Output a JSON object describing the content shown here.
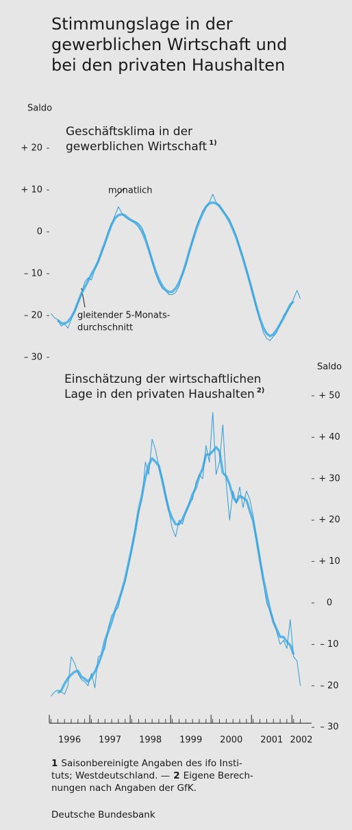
{
  "title": [
    "Stimmungslage in der",
    "gewerblichen Wirtschaft und",
    "bei den privaten Haushalten"
  ],
  "chart_data": [
    {
      "type": "line",
      "subtitle": [
        "Geschäftsklima in der",
        "gewerblichen Wirtschaft"
      ],
      "subtitle_note": "1)",
      "ylabel": "Saldo",
      "yaxis": "left",
      "annotations": [
        {
          "lines": [
            "monatlich"
          ]
        },
        {
          "lines": [
            "gleitender 5-Monats-",
            "durchschnitt"
          ]
        }
      ],
      "x": [
        "1996-01",
        "1996-02",
        "1996-03",
        "1996-04",
        "1996-05",
        "1996-06",
        "1996-07",
        "1996-08",
        "1996-09",
        "1996-10",
        "1996-11",
        "1996-12",
        "1997-01",
        "1997-02",
        "1997-03",
        "1997-04",
        "1997-05",
        "1997-06",
        "1997-07",
        "1997-08",
        "1997-09",
        "1997-10",
        "1997-11",
        "1997-12",
        "1998-01",
        "1998-02",
        "1998-03",
        "1998-04",
        "1998-05",
        "1998-06",
        "1998-07",
        "1998-08",
        "1998-09",
        "1998-10",
        "1998-11",
        "1998-12",
        "1999-01",
        "1999-02",
        "1999-03",
        "1999-04",
        "1999-05",
        "1999-06",
        "1999-07",
        "1999-08",
        "1999-09",
        "1999-10",
        "1999-11",
        "1999-12",
        "2000-01",
        "2000-02",
        "2000-03",
        "2000-04",
        "2000-05",
        "2000-06",
        "2000-07",
        "2000-08",
        "2000-09",
        "2000-10",
        "2000-11",
        "2000-12",
        "2001-01",
        "2001-02",
        "2001-03",
        "2001-04",
        "2001-05",
        "2001-06",
        "2001-07",
        "2001-08",
        "2001-09",
        "2001-10",
        "2001-11",
        "2001-12",
        "2002-01",
        "2002-02",
        "2002-03"
      ],
      "series": [
        {
          "color": "#2f9bd6",
          "width": 1,
          "values": [
            -19.5,
            -20.5,
            -21,
            -22.5,
            -22,
            -23,
            -21,
            -19,
            -17,
            -15,
            -12,
            -11,
            -11.5,
            -9,
            -7,
            -5,
            -3,
            0,
            2,
            4,
            6,
            4.5,
            3.5,
            3,
            2.5,
            2.5,
            2,
            1,
            -1,
            -4,
            -7,
            -10,
            -12,
            -13.5,
            -14,
            -15,
            -15,
            -14.5,
            -13,
            -10,
            -8,
            -5,
            -2,
            1,
            3,
            5,
            6,
            7,
            9,
            7,
            6,
            5,
            4,
            3,
            1,
            -1,
            -4,
            -6,
            -9,
            -12,
            -15,
            -18,
            -21,
            -24,
            -25.5,
            -26,
            -25,
            -24,
            -22,
            -20,
            -19,
            -18,
            -16,
            -14,
            -16
          ]
        },
        {
          "color": "#5ab4e6",
          "width": 3.5,
          "values": [
            null,
            null,
            -21.1,
            -21.8,
            -21.9,
            -21.5,
            -20.4,
            -19,
            -16.8,
            -14.8,
            -13.3,
            -11.7,
            -10.1,
            -8.7,
            -7.1,
            -4.8,
            -2.6,
            -0.4,
            1.8,
            3.3,
            4,
            4.2,
            3.9,
            3.2,
            2.7,
            2.2,
            1.4,
            0.1,
            -1.8,
            -4.2,
            -6.8,
            -9.3,
            -11.3,
            -12.9,
            -13.9,
            -14.4,
            -14.3,
            -13.5,
            -12.1,
            -10.1,
            -7.6,
            -4.8,
            -2.2,
            0.4,
            2.6,
            4.4,
            6,
            6.8,
            7,
            6.8,
            6.2,
            5,
            3.8,
            2.4,
            0.6,
            -1.4,
            -3.8,
            -6.4,
            -9.2,
            -12,
            -15,
            -18,
            -20.7,
            -22.9,
            -24.3,
            -24.9,
            -24.5,
            -23.4,
            -22,
            -20.6,
            -19,
            -17.4,
            -16.6,
            null,
            null
          ]
        }
      ],
      "ylim": [
        -30,
        30
      ],
      "yticks": [
        {
          "value": -30,
          "label": "– 30"
        },
        {
          "value": -20,
          "label": "– 20"
        },
        {
          "value": -10,
          "label": "– 10"
        },
        0,
        {
          "value": 10,
          "label": "+ 10"
        },
        {
          "value": 20,
          "label": "+ 20"
        }
      ]
    },
    {
      "type": "line",
      "subtitle": [
        "Einschätzung der wirtschaftlichen",
        "Lage in den privaten Haushalten"
      ],
      "subtitle_note": "2)",
      "ylabel": "Saldo",
      "yaxis": "right",
      "x": [
        "1996-01",
        "1996-02",
        "1996-03",
        "1996-04",
        "1996-05",
        "1996-06",
        "1996-07",
        "1996-08",
        "1996-09",
        "1996-10",
        "1996-11",
        "1996-12",
        "1997-01",
        "1997-02",
        "1997-03",
        "1997-04",
        "1997-05",
        "1997-06",
        "1997-07",
        "1997-08",
        "1997-09",
        "1997-10",
        "1997-11",
        "1997-12",
        "1998-01",
        "1998-02",
        "1998-03",
        "1998-04",
        "1998-05",
        "1998-06",
        "1998-07",
        "1998-08",
        "1998-09",
        "1998-10",
        "1998-11",
        "1998-12",
        "1999-01",
        "1999-02",
        "1999-03",
        "1999-04",
        "1999-05",
        "1999-06",
        "1999-07",
        "1999-08",
        "1999-09",
        "1999-10",
        "1999-11",
        "1999-12",
        "2000-01",
        "2000-02",
        "2000-03",
        "2000-04",
        "2000-05",
        "2000-06",
        "2000-07",
        "2000-08",
        "2000-09",
        "2000-10",
        "2000-11",
        "2000-12",
        "2001-01",
        "2001-02",
        "2001-03",
        "2001-04",
        "2001-05",
        "2001-06",
        "2001-07",
        "2001-08",
        "2001-09",
        "2001-10",
        "2001-11",
        "2001-12",
        "2002-01",
        "2002-02",
        "2002-03"
      ],
      "xticks": [
        "1996",
        "1997",
        "1998",
        "1999",
        "2000",
        "2001",
        "2002"
      ],
      "series": [
        {
          "color": "#2f9bd6",
          "width": 1,
          "values": [
            -22.5,
            -21.5,
            -21,
            -21.5,
            -22,
            -20,
            -13,
            -14.5,
            -17,
            -18.5,
            -19,
            -20,
            -17,
            -20.5,
            -13,
            -12.5,
            -11,
            -6,
            -3,
            -2,
            -1,
            3,
            5,
            9,
            13,
            18,
            22,
            25,
            34,
            31,
            39.5,
            37,
            33,
            30,
            26,
            22,
            18,
            16,
            20,
            19,
            22,
            24,
            25,
            29,
            31,
            30,
            38,
            34,
            46,
            31,
            34,
            43,
            29,
            20,
            27,
            24,
            28,
            23,
            27,
            25,
            21,
            15,
            11,
            5,
            0,
            -2,
            -4,
            -7,
            -10,
            -9,
            -11,
            -4,
            -13,
            -14,
            -20
          ]
        },
        {
          "color": "#5ab4e6",
          "width": 3.5,
          "values": [
            null,
            null,
            -21.7,
            -21.2,
            -19.5,
            -18.2,
            -17.3,
            -16.6,
            -16.4,
            -17.8,
            -18.3,
            -19,
            -17.9,
            -16.6,
            -14.8,
            -12.6,
            -9.1,
            -6.9,
            -4.6,
            -1.8,
            0.4,
            2.8,
            5.8,
            9.6,
            13.4,
            17.4,
            22.4,
            26,
            30.3,
            33.3,
            34.9,
            34.1,
            33.1,
            29.6,
            25.8,
            22.4,
            20.4,
            19,
            19,
            20.2,
            22,
            23.8,
            26.2,
            27.8,
            30.6,
            32.4,
            35.8,
            35.8,
            36.6,
            37.6,
            36.6,
            31.4,
            30.6,
            28.6,
            25.6,
            24.4,
            25.8,
            25.4,
            24.8,
            22.2,
            19.8,
            15.4,
            10.4,
            5.8,
            2,
            -1.6,
            -4.6,
            -6.4,
            -8.2,
            -8.2,
            -9.4,
            -10.2,
            -12.4,
            null,
            null
          ]
        }
      ],
      "ylim": [
        -30,
        50
      ],
      "yticks": [
        {
          "value": -30,
          "label": "– 30"
        },
        {
          "value": -20,
          "label": "– 20"
        },
        {
          "value": -10,
          "label": "– 10"
        },
        0,
        {
          "value": 10,
          "label": "+ 10"
        },
        {
          "value": 20,
          "label": "+ 20"
        },
        {
          "value": 30,
          "label": "+ 30"
        },
        {
          "value": 40,
          "label": "+ 40"
        },
        {
          "value": 50,
          "label": "+ 50"
        }
      ]
    }
  ],
  "notes": [
    {
      "number": "1",
      "text": "Saisonbereinigte Angaben des ifo Insti-"
    },
    {
      "text": "tuts; Westdeutschland. —",
      "number": "2",
      "after": "Eigene Berech-"
    },
    {
      "text": "nungen nach Angaben der GfK."
    }
  ],
  "source": "Deutsche Bundesbank"
}
